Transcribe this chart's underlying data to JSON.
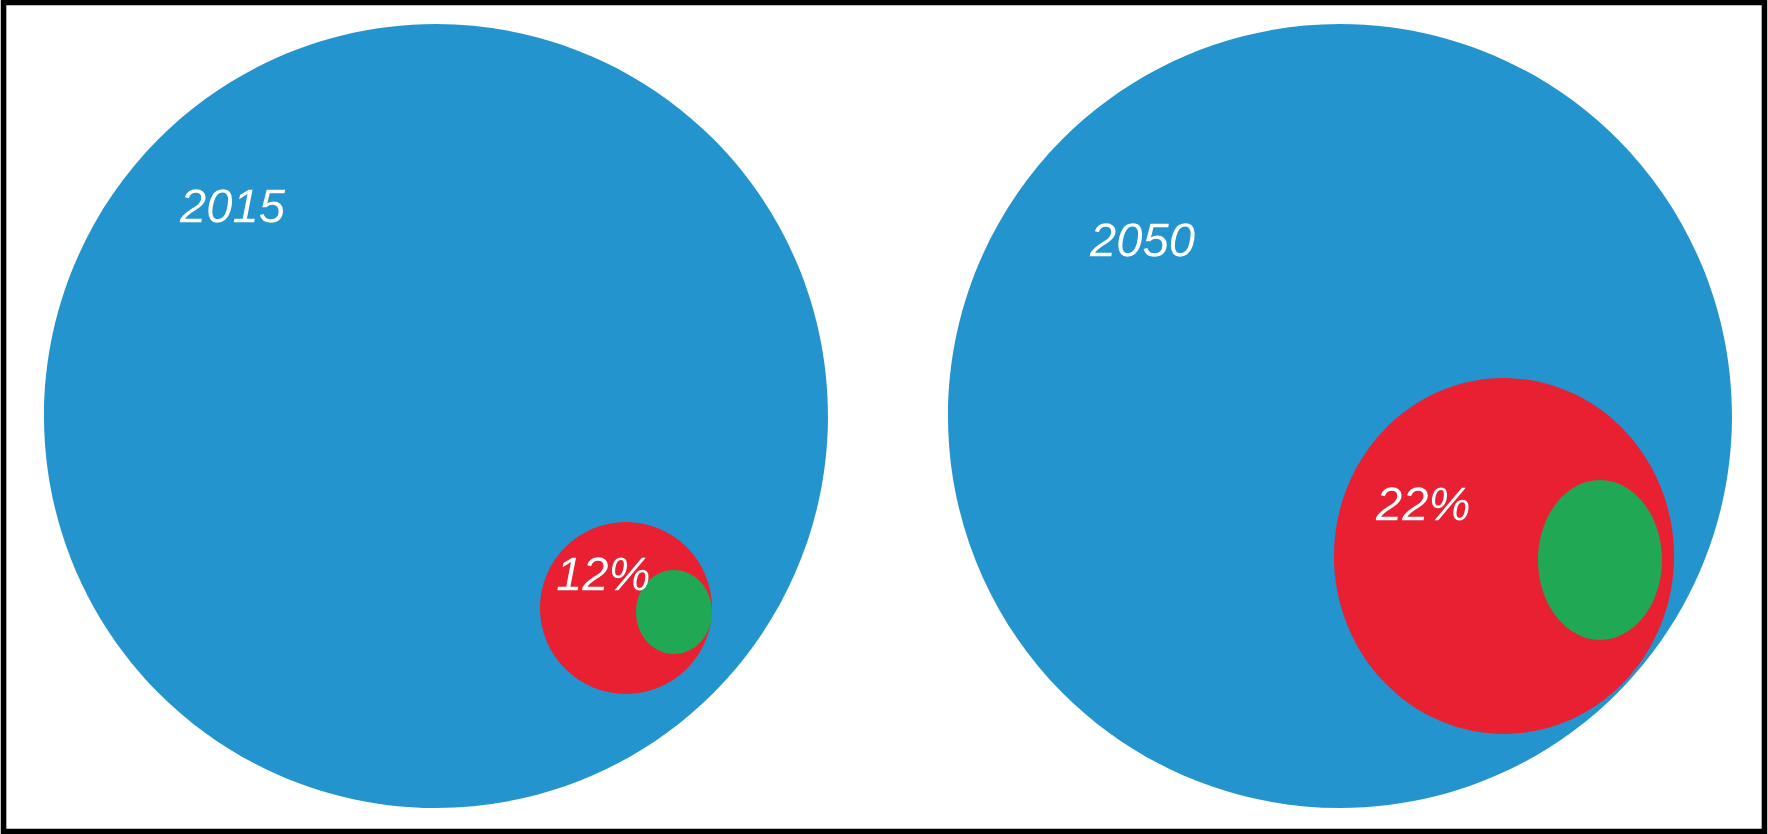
{
  "chart_data": [
    {
      "type": "other",
      "title": "2015",
      "categories": [
        null,
        null,
        null
      ],
      "values": [
        null,
        12,
        null
      ],
      "value_labels": [
        null,
        "12%",
        null
      ],
      "colors": [
        "#2494cf",
        "#e82032",
        "#20a855"
      ]
    },
    {
      "type": "other",
      "title": "2050",
      "categories": [
        null,
        null,
        null
      ],
      "values": [
        null,
        22,
        null
      ],
      "value_labels": [
        null,
        "22%",
        null
      ],
      "colors": [
        "#2494cf",
        "#e82032",
        "#20a855"
      ]
    }
  ]
}
